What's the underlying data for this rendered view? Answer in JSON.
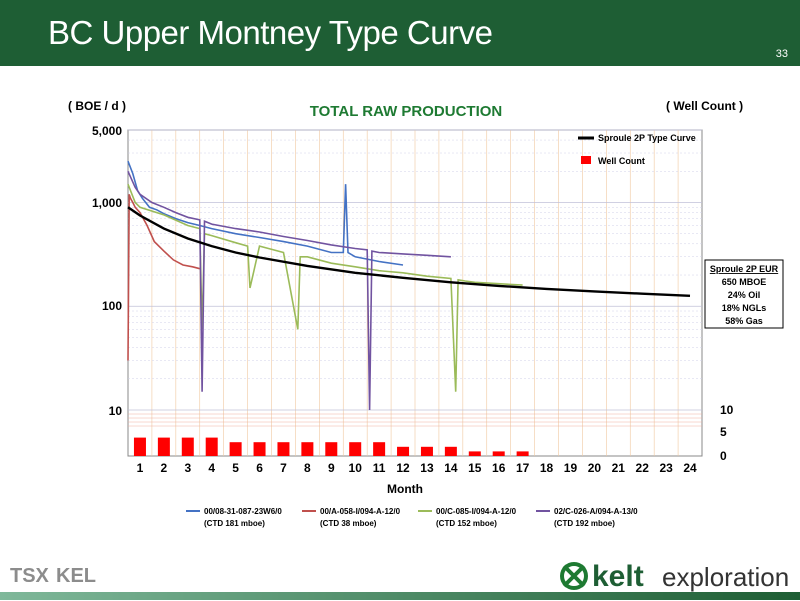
{
  "header": {
    "title": "BC Upper Montney Type Curve",
    "page_number": "33"
  },
  "chart_data": {
    "type": "line",
    "title": "TOTAL RAW PRODUCTION",
    "left_axis_label": "( BOE / d )",
    "right_axis_label": "( Well Count )",
    "xlabel": "Month",
    "x_ticks": [
      "1",
      "2",
      "3",
      "4",
      "5",
      "6",
      "7",
      "8",
      "9",
      "10",
      "11",
      "12",
      "13",
      "14",
      "15",
      "16",
      "17",
      "18",
      "19",
      "20",
      "21",
      "22",
      "23",
      "24"
    ],
    "y_ticks_log": [
      "5,000",
      "1,000",
      "100",
      "10"
    ],
    "y_tick_values": [
      5000,
      1000,
      100,
      10
    ],
    "right_ticks": [
      "10",
      "5",
      "0"
    ],
    "scale": "log",
    "ylim": [
      10,
      5000
    ],
    "type_curve": {
      "name": "Sproule 2P Type Curve",
      "color": "#000000",
      "x": [
        0.5,
        1,
        2,
        3,
        4,
        5,
        6,
        8,
        10,
        12,
        14,
        16,
        18,
        20,
        22,
        24
      ],
      "y": [
        900,
        750,
        560,
        450,
        380,
        330,
        295,
        245,
        210,
        188,
        170,
        157,
        147,
        139,
        132,
        126
      ]
    },
    "well_count": {
      "name": "Well Count",
      "color": "#ff0000",
      "months": [
        1,
        2,
        3,
        4,
        5,
        6,
        7,
        8,
        9,
        10,
        11,
        12,
        13,
        14,
        15,
        16,
        17
      ],
      "values": [
        4,
        4,
        4,
        4,
        3,
        3,
        3,
        3,
        3,
        3,
        3,
        2,
        2,
        2,
        1,
        1,
        1
      ]
    },
    "eur_box": {
      "title": "Sproule 2P EUR",
      "lines": [
        "650 MBOE",
        "24% Oil",
        "18% NGLs",
        "58% Gas"
      ]
    },
    "series": [
      {
        "name": "00/08-31-087-23W6/0",
        "note": "(CTD 181 mboe)",
        "color": "#4472c4",
        "x": [
          0.5,
          0.7,
          0.9,
          1.1,
          1.4,
          1.7,
          2,
          2.5,
          3,
          3.5,
          4,
          5,
          6,
          7,
          8,
          9,
          9.5,
          9.6,
          9.7,
          10,
          11,
          12
        ],
        "y": [
          2500,
          1900,
          1300,
          1100,
          900,
          850,
          780,
          700,
          640,
          600,
          560,
          500,
          460,
          420,
          380,
          330,
          330,
          1500,
          330,
          300,
          270,
          250
        ]
      },
      {
        "name": "00/A-058-I/094-A-12/0",
        "note": "(CTD 38 mboe)",
        "color": "#c0504d",
        "x": [
          0.5,
          0.55,
          0.6,
          0.7,
          0.8,
          1,
          1.3,
          1.6,
          2,
          2.4,
          2.8,
          3.2,
          3.5
        ],
        "y": [
          30,
          1200,
          1100,
          1000,
          900,
          800,
          600,
          420,
          340,
          280,
          250,
          240,
          230
        ]
      },
      {
        "name": "00/C-085-I/094-A-12/0",
        "note": "(CTD 152 mboe)",
        "color": "#9bbb59",
        "x": [
          0.5,
          0.8,
          1,
          2,
          3,
          3.5,
          3.6,
          3.7,
          4,
          5,
          5.5,
          5.6,
          6,
          7,
          7.6,
          7.7,
          8,
          9,
          10,
          11,
          12,
          13,
          14,
          14.2,
          14.3,
          14.6,
          15,
          16,
          17
        ],
        "y": [
          1500,
          1000,
          900,
          760,
          600,
          560,
          60,
          500,
          480,
          410,
          380,
          150,
          380,
          330,
          60,
          300,
          300,
          260,
          240,
          220,
          210,
          195,
          185,
          15,
          180,
          175,
          170,
          165,
          160
        ]
      },
      {
        "name": "02/C-026-A/094-A-13/0",
        "note": "(CTD 192 mboe)",
        "color": "#7153a0",
        "x": [
          0.5,
          0.8,
          1,
          1.5,
          2,
          2.5,
          3,
          3.5,
          3.6,
          3.7,
          4,
          5,
          6,
          7,
          8,
          9,
          10,
          10.5,
          10.6,
          10.7,
          11,
          12,
          13,
          14
        ],
        "y": [
          2000,
          1400,
          1200,
          1000,
          900,
          800,
          720,
          680,
          15,
          660,
          620,
          560,
          520,
          470,
          430,
          390,
          360,
          350,
          10,
          340,
          330,
          320,
          310,
          300
        ]
      }
    ]
  },
  "logos": {
    "tsx": "TSX",
    "tsx_symbol": "KEL",
    "kelt": "kelt",
    "kelt_sub": "exploration"
  }
}
